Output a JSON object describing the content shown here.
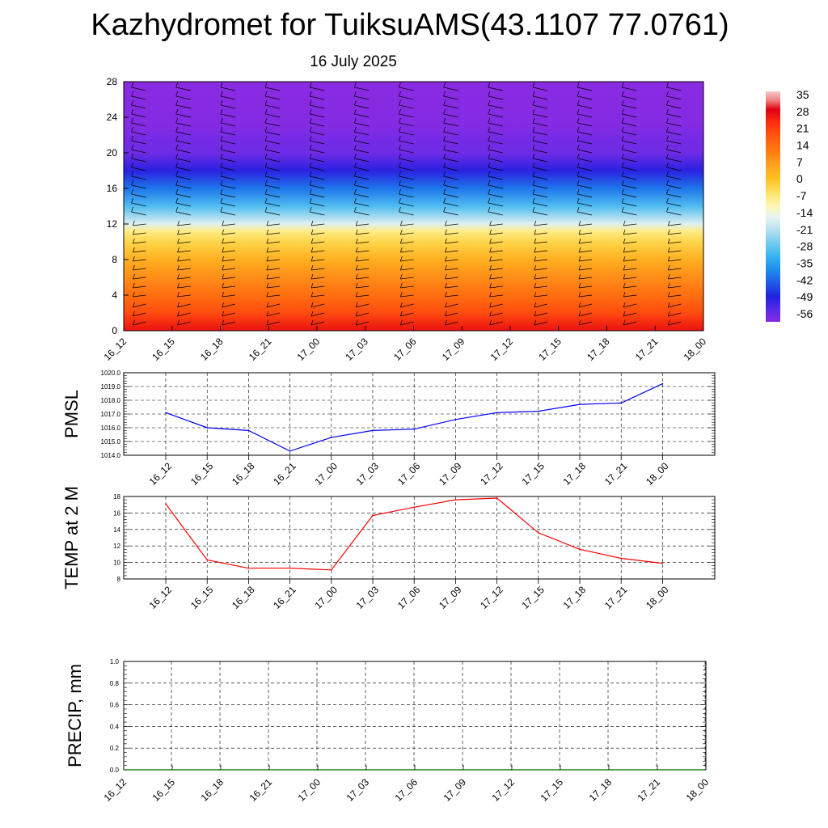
{
  "title": "Kazhydromet for TuiksuAMS(43.1107 77.0761)",
  "subtitle": "16 July 2025",
  "chart_data": [
    {
      "type": "heatmap",
      "name": "upper-air",
      "y_ticks": [
        "0",
        "4",
        "8",
        "12",
        "16",
        "20",
        "24",
        "28"
      ],
      "ylim": [
        0,
        28
      ],
      "x_ticks": [
        "16_12",
        "16_15",
        "16_18",
        "16_21",
        "17_00",
        "17_03",
        "17_06",
        "17_09",
        "17_12",
        "17_15",
        "17_18",
        "17_21",
        "18_00"
      ],
      "colorbar_labels": [
        "35",
        "28",
        "21",
        "14",
        "7",
        "0",
        "-7",
        "-14",
        "-21",
        "-28",
        "-35",
        "-42",
        "-49",
        "-56"
      ],
      "colorbar_range": [
        -63,
        38
      ],
      "temperature_profile": [
        {
          "level": 0,
          "value": 28
        },
        {
          "level": 2,
          "value": 20
        },
        {
          "level": 4,
          "value": 14
        },
        {
          "level": 6,
          "value": 9
        },
        {
          "level": 8,
          "value": 3
        },
        {
          "level": 10,
          "value": -4
        },
        {
          "level": 11.2,
          "value": -9
        },
        {
          "level": 12,
          "value": -18
        },
        {
          "level": 14,
          "value": -32
        },
        {
          "level": 16,
          "value": -43
        },
        {
          "level": 18,
          "value": -53
        },
        {
          "level": 20,
          "value": -61
        },
        {
          "level": 21.5,
          "value": -62
        },
        {
          "level": 23,
          "value": -64
        },
        {
          "level": 28,
          "value": -65
        }
      ]
    },
    {
      "type": "line",
      "name": "pmsl",
      "ylabel": "PMSL",
      "ylim": [
        1014,
        1020
      ],
      "y_ticks": [
        "1014.0",
        "1015.0",
        "1016.0",
        "1017.0",
        "1018.0",
        "1019.0",
        "1020.0"
      ],
      "categories": [
        "16_12",
        "16_15",
        "16_18",
        "16_21",
        "17_00",
        "17_03",
        "17_06",
        "17_09",
        "17_12",
        "17_15",
        "17_18",
        "17_21",
        "18_00"
      ],
      "values": [
        1017.1,
        1016.0,
        1015.8,
        1014.3,
        1015.3,
        1015.8,
        1015.9,
        1016.6,
        1017.1,
        1017.2,
        1017.7,
        1017.8,
        1019.2
      ],
      "color": "#0000ff"
    },
    {
      "type": "line",
      "name": "temp2m",
      "ylabel": "TEMP at 2 M",
      "ylim": [
        8,
        18
      ],
      "y_ticks": [
        "8",
        "10",
        "12",
        "14",
        "16",
        "18"
      ],
      "categories": [
        "16_12",
        "16_15",
        "16_18",
        "16_21",
        "17_00",
        "17_03",
        "17_06",
        "17_09",
        "17_12",
        "17_15",
        "17_18",
        "17_21",
        "18_00"
      ],
      "values": [
        17.1,
        10.3,
        9.3,
        9.3,
        9.1,
        15.7,
        16.7,
        17.6,
        17.8,
        13.6,
        11.6,
        10.5,
        9.9
      ],
      "color": "#ff0000"
    },
    {
      "type": "line",
      "name": "precip",
      "ylabel": "PRECIP, mm",
      "ylim": [
        0,
        1
      ],
      "y_ticks": [
        "0.0",
        "0.2",
        "0.4",
        "0.6",
        "0.8",
        "1.0"
      ],
      "categories": [
        "16_12",
        "16_15",
        "16_18",
        "16_21",
        "17_00",
        "17_03",
        "17_06",
        "17_09",
        "17_12",
        "17_15",
        "17_18",
        "17_21",
        "18_00"
      ],
      "values": [
        0,
        0,
        0,
        0,
        0,
        0,
        0,
        0,
        0,
        0,
        0,
        0,
        0
      ],
      "color": "#006400"
    }
  ]
}
